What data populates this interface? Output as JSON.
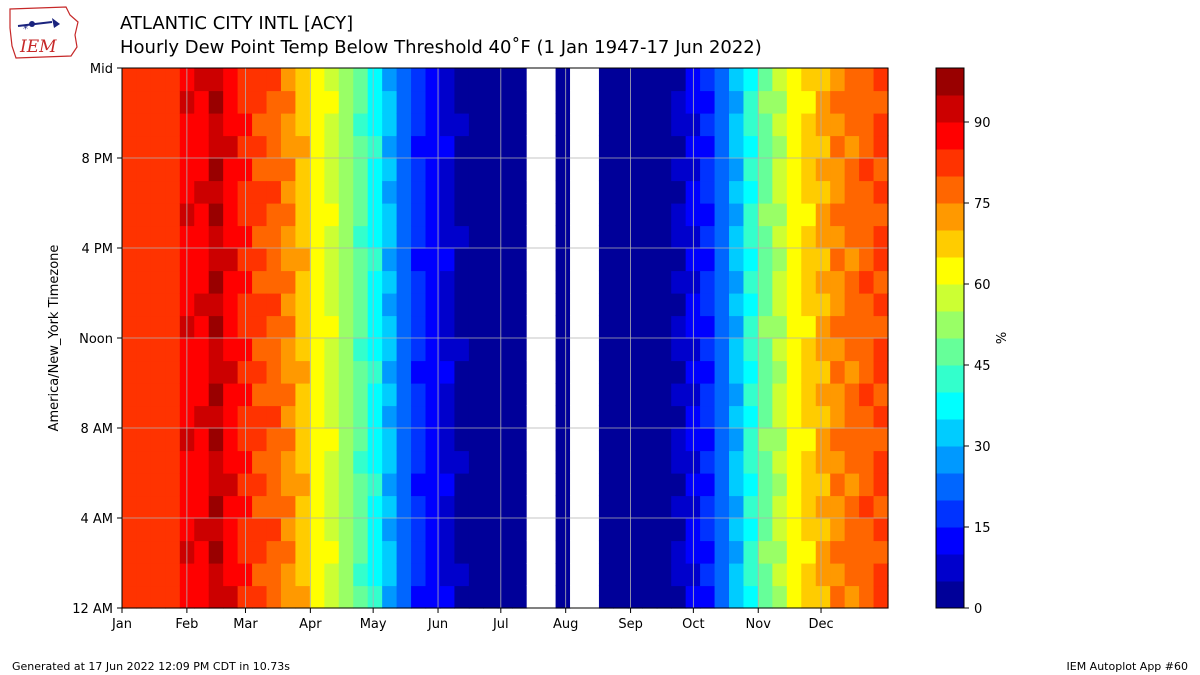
{
  "header": {
    "title_line1": "ATLANTIC CITY INTL [ACY]",
    "title_line2": "Hourly Dew Point Temp Below Threshold 40˚F (1 Jan 1947-17 Jun 2022)",
    "logo_text": "IEM"
  },
  "footer": {
    "generated": "Generated at 17 Jun 2022 12:09 PM CDT in 10.73s",
    "app": "IEM Autoplot App #60"
  },
  "colors": {
    "missing": "#ffffff",
    "grid": "#b0b0b0",
    "colormap": "jet"
  },
  "chart_data": {
    "type": "heatmap",
    "ylabel": "America/New_York Timezone",
    "colorbar_label": "%",
    "x_ticks": [
      "Jan",
      "Feb",
      "Mar",
      "Apr",
      "May",
      "Jun",
      "Jul",
      "Aug",
      "Sep",
      "Oct",
      "Nov",
      "Dec"
    ],
    "y_ticks": [
      "12 AM",
      "4 AM",
      "8 AM",
      "Noon",
      "4 PM",
      "8 PM",
      "Mid"
    ],
    "colorbar_ticks": [
      0,
      15,
      30,
      45,
      60,
      75,
      90
    ],
    "value_range": [
      0,
      100
    ],
    "x_unit": "week of year (53 weekly bins)",
    "y_unit": "hour of day (24 hourly bins)",
    "approx_weekly_values_midday": [
      82,
      82,
      82,
      82,
      88,
      88,
      94,
      88,
      84,
      80,
      78,
      74,
      68,
      62,
      58,
      52,
      46,
      38,
      30,
      22,
      16,
      12,
      8,
      3,
      1,
      1,
      1,
      1,
      null,
      null,
      0,
      null,
      null,
      0,
      0,
      1,
      1,
      1,
      5,
      10,
      15,
      22,
      30,
      40,
      48,
      55,
      62,
      66,
      70,
      74,
      76,
      78,
      80
    ],
    "notes": "Cells with no data (July-August) shown in white"
  }
}
